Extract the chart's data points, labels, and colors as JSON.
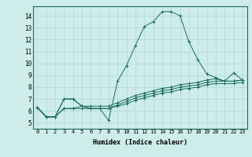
{
  "xlabel": "Humidex (Indice chaleur)",
  "bg_color": "#cdecea",
  "grid_color": "#b0d8d4",
  "line_color": "#1a6b5a",
  "xlim": [
    -0.5,
    23.5
  ],
  "ylim": [
    4.5,
    14.8
  ],
  "yticks": [
    5,
    6,
    7,
    8,
    9,
    10,
    11,
    12,
    13,
    14
  ],
  "xticks": [
    0,
    1,
    2,
    3,
    4,
    5,
    6,
    7,
    8,
    9,
    10,
    11,
    12,
    13,
    14,
    15,
    16,
    17,
    18,
    19,
    20,
    21,
    22,
    23
  ],
  "series": [
    [
      6.3,
      5.5,
      5.5,
      7.0,
      7.0,
      6.4,
      6.2,
      6.2,
      5.2,
      8.5,
      9.8,
      11.5,
      13.1,
      13.5,
      14.35,
      14.35,
      14.0,
      11.8,
      10.3,
      9.1,
      8.8,
      8.5,
      9.2,
      8.6
    ],
    [
      6.3,
      5.5,
      5.5,
      7.0,
      7.0,
      6.4,
      6.2,
      6.2,
      6.2,
      6.5,
      6.8,
      7.1,
      7.3,
      7.5,
      7.7,
      7.8,
      8.0,
      8.1,
      8.2,
      8.4,
      8.5,
      8.5,
      8.5,
      8.6
    ],
    [
      6.3,
      5.5,
      5.5,
      6.2,
      6.2,
      6.2,
      6.2,
      6.2,
      6.2,
      6.4,
      6.6,
      6.9,
      7.1,
      7.3,
      7.5,
      7.6,
      7.8,
      7.9,
      8.0,
      8.2,
      8.3,
      8.3,
      8.3,
      8.4
    ],
    [
      6.3,
      5.5,
      5.5,
      6.2,
      6.2,
      6.4,
      6.4,
      6.4,
      6.4,
      6.7,
      7.0,
      7.3,
      7.5,
      7.7,
      7.9,
      8.0,
      8.2,
      8.3,
      8.4,
      8.6,
      8.7,
      8.5,
      8.5,
      8.6
    ]
  ]
}
